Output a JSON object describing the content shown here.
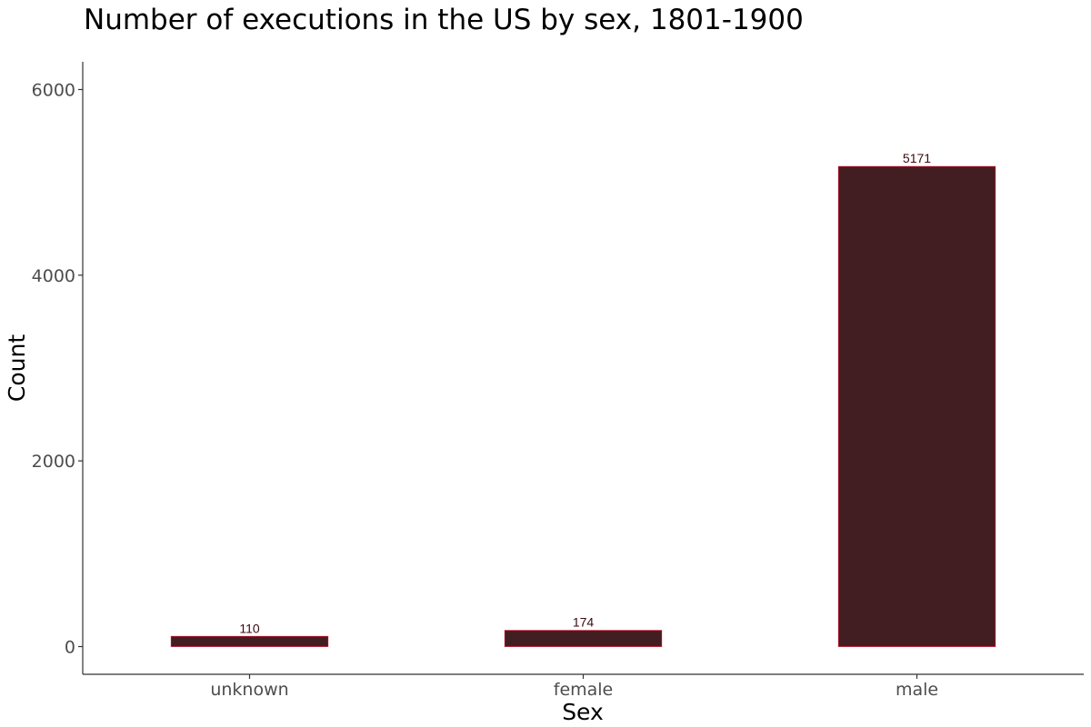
{
  "chart_data": {
    "type": "bar",
    "title": "Number of executions in the US by sex, 1801-1900",
    "xlabel": "Sex",
    "ylabel": "Count",
    "categories": [
      "unknown",
      "female",
      "male"
    ],
    "values": [
      110,
      174,
      5171
    ],
    "value_labels": [
      "110",
      "174",
      "5171"
    ],
    "yticks": [
      0,
      2000,
      4000,
      6000
    ],
    "ytick_labels": [
      "0",
      "2000",
      "4000",
      "6000"
    ],
    "ylim": [
      -300,
      6300
    ],
    "grid": false,
    "bar_fill": "#421e22",
    "bar_outline": "#c0102a"
  }
}
